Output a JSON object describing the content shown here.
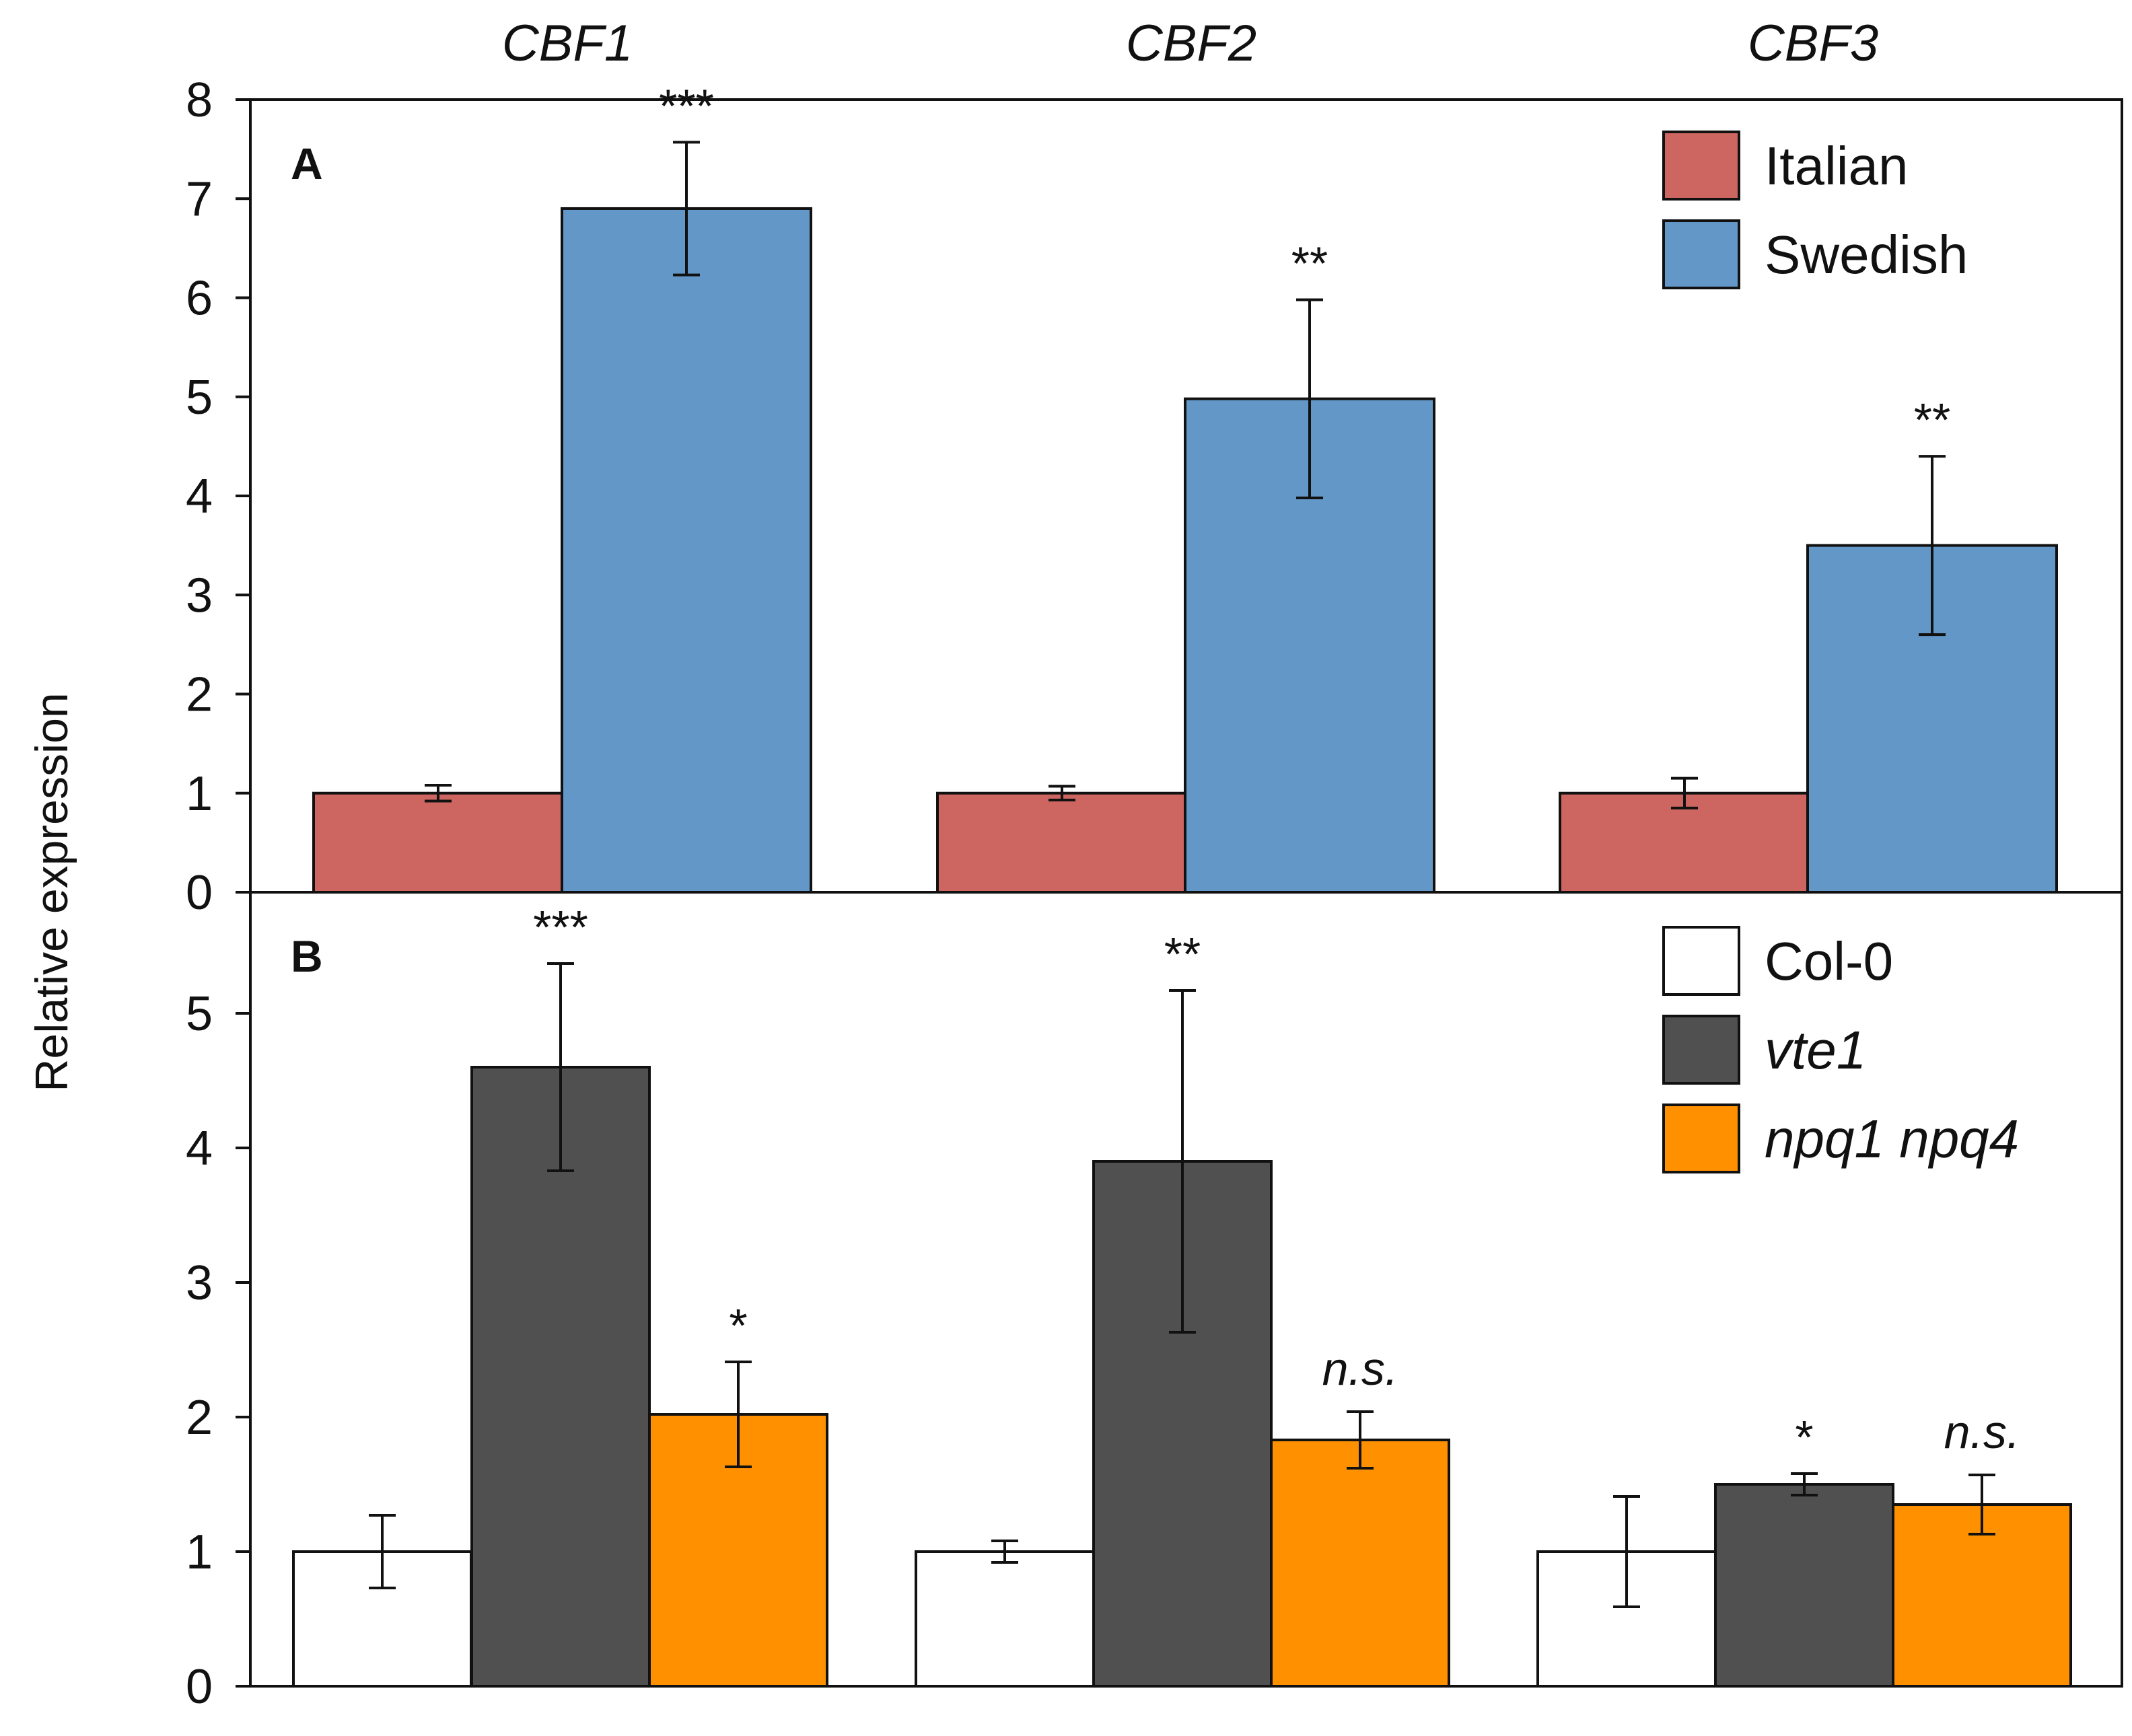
{
  "chart_data": {
    "type": "bar",
    "categories": [
      "CBF1",
      "CBF2",
      "CBF3"
    ],
    "ylabel": "Relative expression",
    "panels": [
      {
        "label": "A",
        "ylim": [
          0,
          8
        ],
        "yticks": [
          "0",
          "1",
          "2",
          "3",
          "4",
          "5",
          "6",
          "7",
          "8"
        ],
        "series": [
          {
            "name": "Italian",
            "color": "#cd6661",
            "italic": false,
            "values": [
              1.0,
              1.0,
              1.0
            ],
            "errors": [
              0.08,
              0.07,
              0.15
            ],
            "significance": [
              "",
              "",
              ""
            ]
          },
          {
            "name": "Swedish",
            "color": "#6397c8",
            "italic": false,
            "values": [
              6.9,
              4.98,
              3.5
            ],
            "errors": [
              0.67,
              1.0,
              0.9
            ],
            "significance": [
              "***",
              "**",
              "**"
            ]
          }
        ]
      },
      {
        "label": "B",
        "ylim": [
          0,
          5.9
        ],
        "yticks": [
          "0",
          "1",
          "2",
          "3",
          "4",
          "5"
        ],
        "series": [
          {
            "name": "Col-0",
            "color": "#ffffff",
            "italic": false,
            "values": [
              1.0,
              1.0,
              1.0
            ],
            "errors": [
              0.27,
              0.08,
              0.41
            ],
            "significance": [
              "",
              "",
              ""
            ]
          },
          {
            "name": "vte1",
            "color": "#505050",
            "italic": true,
            "values": [
              4.6,
              3.9,
              1.5
            ],
            "errors": [
              0.77,
              1.27,
              0.08
            ],
            "significance": [
              "***",
              "**",
              "*"
            ]
          },
          {
            "name": "npq1 npq4",
            "color": "#ff9100",
            "italic": true,
            "values": [
              2.02,
              1.83,
              1.35
            ],
            "errors": [
              0.39,
              0.21,
              0.22
            ],
            "significance": [
              "*",
              "n.s.",
              "n.s."
            ]
          }
        ]
      }
    ]
  }
}
